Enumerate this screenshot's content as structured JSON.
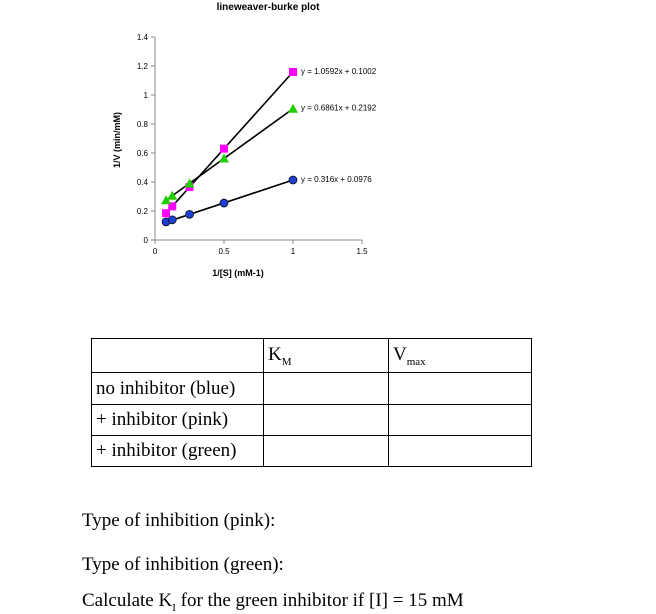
{
  "chart_data": {
    "type": "scatter",
    "title": "lineweaver-burke plot",
    "xlabel": "1/[S] (mM-1)",
    "ylabel": "1/V (min/mM)",
    "xlim": [
      0,
      1.5
    ],
    "ylim": [
      0,
      1.4
    ],
    "x_ticks": [
      "0",
      "0.5",
      "1",
      "1.5"
    ],
    "y_ticks": [
      "0",
      "0.2",
      "0.4",
      "0.6",
      "0.8",
      "1",
      "1.2",
      "1.4"
    ],
    "grid": false,
    "series": [
      {
        "marker": "circle",
        "color": "#1f3fd0",
        "x": [
          0.08,
          0.125,
          0.25,
          0.5,
          1.0
        ],
        "y": [
          0.125,
          0.139,
          0.177,
          0.255,
          0.414
        ],
        "equation": "y = 0.316x + 0.0976",
        "slope": 0.316,
        "intercept": 0.0976
      },
      {
        "marker": "square",
        "color": "#ff00ff",
        "x": [
          0.08,
          0.125,
          0.25,
          0.5,
          1.0
        ],
        "y": [
          0.185,
          0.232,
          0.365,
          0.63,
          1.159
        ],
        "equation": "y = 1.0592x + 0.1002",
        "slope": 1.0592,
        "intercept": 0.1002
      },
      {
        "marker": "triangle",
        "color": "#22cc00",
        "x": [
          0.08,
          0.125,
          0.25,
          0.5,
          1.0
        ],
        "y": [
          0.274,
          0.305,
          0.39,
          0.562,
          0.905
        ],
        "equation": "y = 0.6861x + 0.2192",
        "slope": 0.6861,
        "intercept": 0.2192
      }
    ]
  },
  "table": {
    "headers": [
      "",
      "K",
      "V"
    ],
    "header_subs": [
      "",
      "M",
      "max"
    ],
    "rows": [
      "no inhibitor (blue)",
      "+ inhibitor (pink)",
      "+ inhibitor (green)"
    ]
  },
  "questions": {
    "q1": "Type of inhibition (pink):",
    "q2": "Type of inhibition (green):",
    "q3_pre": "Calculate K",
    "q3_sub": "I",
    "q3_post": " for the green inhibitor if [I] = 15 mM"
  }
}
